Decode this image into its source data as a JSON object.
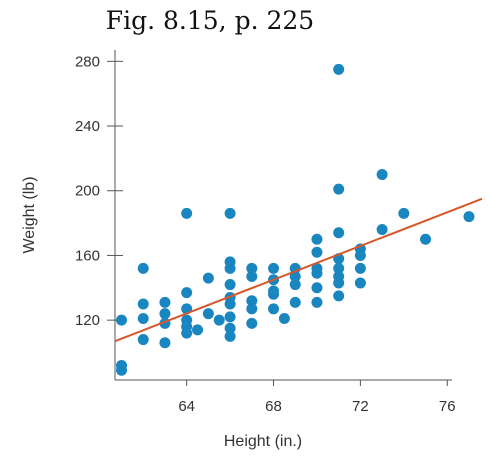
{
  "figure": {
    "title": "Fig.  8.15, p. 225"
  },
  "colors": {
    "points": "#1a86c0",
    "fit_line": "#d9582b",
    "axis": "#555555",
    "text": "#333333"
  },
  "chart_data": {
    "type": "scatter",
    "title": "Fig.  8.15, p. 225",
    "xlabel": "Height (in.)",
    "ylabel": "Weight (lb)",
    "xlim": [
      60.7,
      77.6
    ],
    "ylim": [
      83,
      287
    ],
    "xticks": [
      64,
      68,
      72,
      76
    ],
    "yticks": [
      120,
      160,
      200,
      240,
      280
    ],
    "grid": false,
    "points": [
      [
        61,
        120
      ],
      [
        61,
        92
      ],
      [
        61,
        89
      ],
      [
        62,
        152
      ],
      [
        62,
        130
      ],
      [
        62,
        121
      ],
      [
        62,
        108
      ],
      [
        63,
        131
      ],
      [
        63,
        124
      ],
      [
        63,
        118
      ],
      [
        63,
        106
      ],
      [
        64,
        186
      ],
      [
        64,
        137
      ],
      [
        64,
        127
      ],
      [
        64,
        120
      ],
      [
        64,
        116
      ],
      [
        64,
        112
      ],
      [
        64.5,
        114
      ],
      [
        65,
        146
      ],
      [
        65,
        124
      ],
      [
        65.5,
        120
      ],
      [
        66,
        186
      ],
      [
        66,
        156
      ],
      [
        66,
        152
      ],
      [
        66,
        142
      ],
      [
        66,
        134
      ],
      [
        66,
        130
      ],
      [
        66,
        122
      ],
      [
        66,
        115
      ],
      [
        66,
        110
      ],
      [
        67,
        152
      ],
      [
        67,
        147
      ],
      [
        67,
        132
      ],
      [
        67,
        127
      ],
      [
        67,
        118
      ],
      [
        68,
        152
      ],
      [
        68,
        145
      ],
      [
        68,
        138
      ],
      [
        68,
        136
      ],
      [
        68,
        127
      ],
      [
        68.5,
        121
      ],
      [
        69,
        152
      ],
      [
        69,
        147
      ],
      [
        69,
        142
      ],
      [
        69,
        131
      ],
      [
        70,
        170
      ],
      [
        70,
        162
      ],
      [
        70,
        152
      ],
      [
        70,
        149
      ],
      [
        70,
        140
      ],
      [
        70,
        131
      ],
      [
        71,
        275
      ],
      [
        71,
        201
      ],
      [
        71,
        174
      ],
      [
        71,
        158
      ],
      [
        71,
        152
      ],
      [
        71,
        147
      ],
      [
        71,
        143
      ],
      [
        71,
        135
      ],
      [
        72,
        164
      ],
      [
        72,
        160
      ],
      [
        72,
        152
      ],
      [
        72,
        143
      ],
      [
        73,
        210
      ],
      [
        73,
        176
      ],
      [
        74,
        186
      ],
      [
        75,
        170
      ],
      [
        77,
        184
      ]
    ],
    "fit_line": {
      "x": [
        60.7,
        77.6
      ],
      "y": [
        107,
        195
      ]
    }
  },
  "axes": {
    "x_label": "Height (in.)",
    "y_label": "Weight (lb)",
    "x_tick_labels": [
      "64",
      "68",
      "72",
      "76"
    ],
    "y_tick_labels": [
      "280",
      "240",
      "200",
      "160",
      "120"
    ]
  }
}
